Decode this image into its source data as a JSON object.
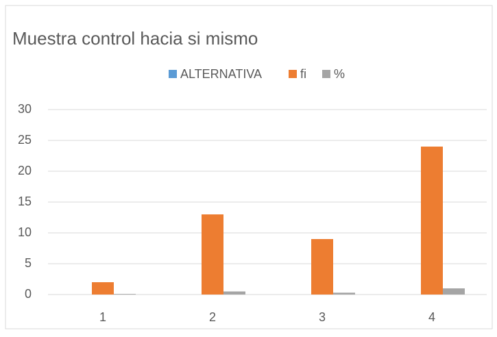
{
  "chart_data": {
    "type": "bar",
    "title": "Muestra control hacia si mismo",
    "categories": [
      "1",
      "2",
      "3",
      "4"
    ],
    "series": [
      {
        "name": "ALTERNATIVA",
        "color": "#5b9bd5",
        "values": [
          0,
          0,
          0,
          0
        ]
      },
      {
        "name": "fi",
        "color": "#ed7d31",
        "values": [
          2,
          13,
          9,
          24
        ]
      },
      {
        "name": "%",
        "color": "#a5a5a5",
        "values": [
          0.1,
          0.5,
          0.3,
          1
        ]
      }
    ],
    "ylim": [
      0,
      30
    ],
    "yticks": [
      0,
      5,
      10,
      15,
      20,
      25,
      30
    ],
    "grid": true,
    "legend": "top"
  }
}
